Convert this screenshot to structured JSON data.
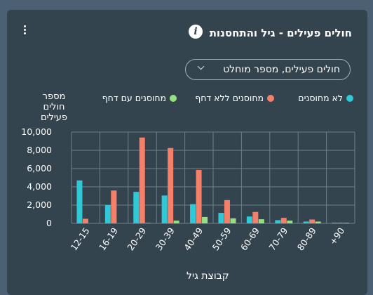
{
  "card": {
    "title": "חולים פעילים - גיל והתחסנות",
    "info_icon": "info-icon",
    "menu_icon": "kebab-menu-icon"
  },
  "select": {
    "value": "חולים פעילים, מספר מוחלט",
    "icon": "chevron-down-icon"
  },
  "colors": {
    "card_bg": "#34444f",
    "page_bg": "#4b6072",
    "grid": "#6d7f8c"
  },
  "chart_data": {
    "type": "bar",
    "ylabel": "מספר חולים פעילים",
    "xlabel": "קבוצת גיל",
    "ylim": [
      0,
      10000
    ],
    "yticks": [
      "0",
      "2,000",
      "4,000",
      "6,000",
      "8,000",
      "10,000"
    ],
    "grid": true,
    "legend_position": "top",
    "categories": [
      "12-15",
      "16-19",
      "20-29",
      "30-39",
      "40-49",
      "50-59",
      "60-69",
      "70-79",
      "80-89",
      "+90"
    ],
    "series": [
      {
        "name": "לא מחוסנים",
        "color": "#2ec8d6",
        "values": [
          4700,
          2000,
          3450,
          3050,
          2100,
          1150,
          750,
          350,
          200,
          80
        ]
      },
      {
        "name": "מחוסנים ללא דחף",
        "color": "#f4806a",
        "values": [
          500,
          3600,
          9400,
          8250,
          5850,
          2550,
          1250,
          600,
          420,
          80
        ]
      },
      {
        "name": "מחוסנים עם דחף",
        "color": "#96e07e",
        "values": [
          0,
          0,
          50,
          300,
          700,
          550,
          450,
          300,
          200,
          60
        ]
      }
    ]
  }
}
